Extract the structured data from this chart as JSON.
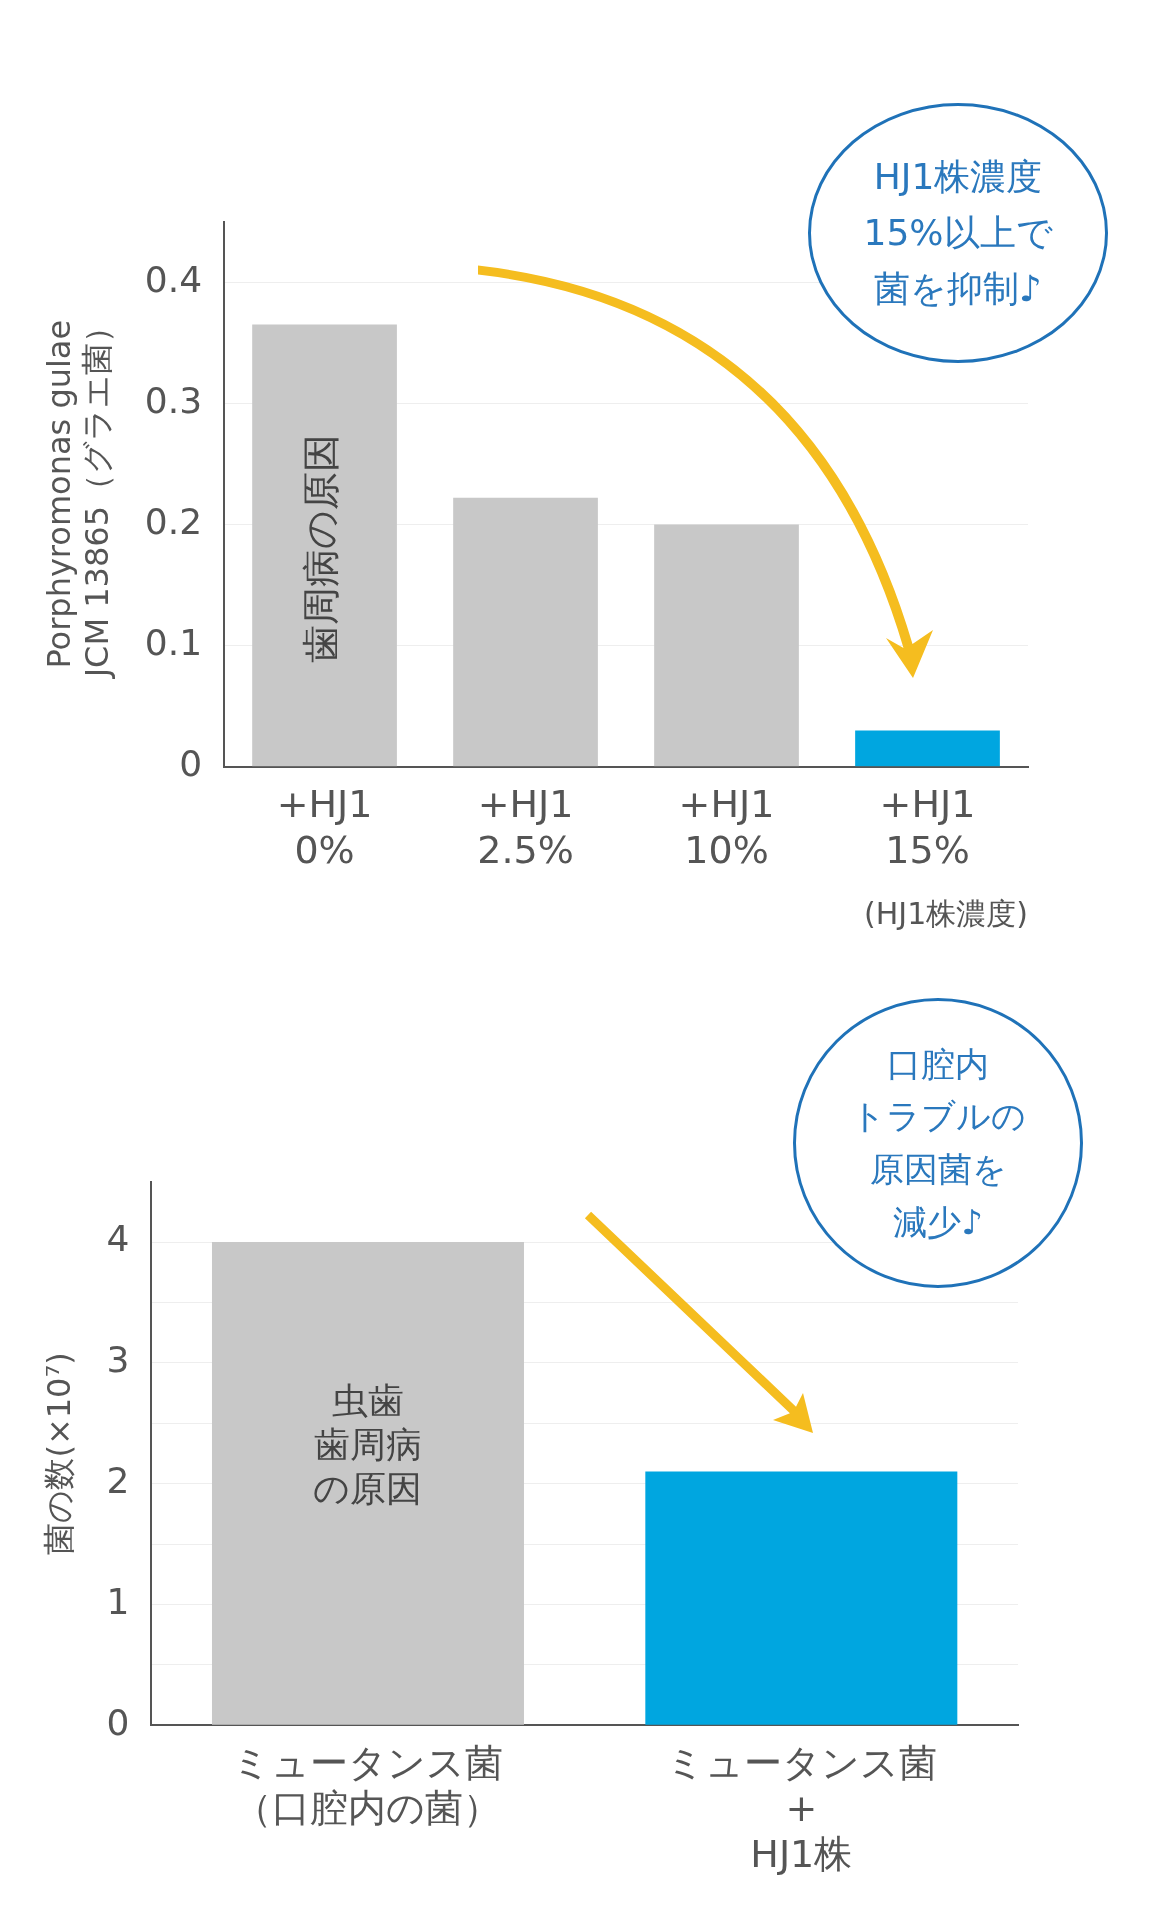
{
  "chart_data": [
    {
      "type": "bar",
      "categories": [
        "+HJ1\n0%",
        "+HJ1\n2.5%",
        "+HJ1\n10%",
        "+HJ1\n15%"
      ],
      "xlabel": "(HJ1株濃度)",
      "ylabel": "Porphyromonas gulae\nJCM 13865（グラエ菌）",
      "series": [
        {
          "colors": [
            "#c8c8c8",
            "#c8c8c8",
            "#c8c8c8",
            "#00a6e0"
          ],
          "values": [
            0.365,
            0.222,
            0.2,
            0.03
          ]
        }
      ],
      "ylim": [
        0,
        0.45
      ],
      "yticks": [
        0,
        0.1,
        0.2,
        0.3,
        0.4
      ],
      "grid": "y",
      "legend": false,
      "annotations": [
        "歯周病の原因",
        "HJ1株濃度15%以上で菌を抑制♪"
      ]
    },
    {
      "type": "bar",
      "categories": [
        "ミュータンス菌（口腔内の菌）",
        "ミュータンス菌\n+\nHJ1株"
      ],
      "ylabel": "菌の数(×10⁷)",
      "series": [
        {
          "colors": [
            "#c8c8c8",
            "#00a6e0"
          ],
          "values": [
            4.0,
            2.1
          ]
        }
      ],
      "ylim": [
        0,
        4.5
      ],
      "yticks": [
        0,
        {
          "value": 0.5,
          "label": null
        },
        1,
        {
          "value": 1.5,
          "label": null
        },
        2,
        {
          "value": 2.5,
          "label": null
        },
        3,
        {
          "value": 3.5,
          "label": null
        },
        4
      ],
      "grid": "y",
      "legend": false,
      "annotations": [
        "虫歯歯周病の原因",
        "口腔内トラブルの原因菌を減少♪"
      ]
    }
  ]
}
